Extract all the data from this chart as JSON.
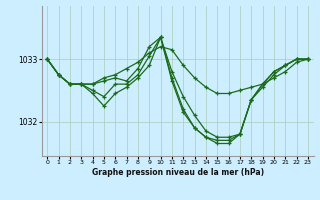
{
  "title": "Graphe pression niveau de la mer (hPa)",
  "bg_color": "#cceeff",
  "grid_color": "#aaccbb",
  "line_color": "#1a6b1a",
  "xlim": [
    -0.5,
    23.5
  ],
  "ylim": [
    1031.45,
    1033.85
  ],
  "yticks": [
    1032,
    1033
  ],
  "xticks": [
    0,
    1,
    2,
    3,
    4,
    5,
    6,
    7,
    8,
    9,
    10,
    11,
    12,
    13,
    14,
    15,
    16,
    17,
    18,
    19,
    20,
    21,
    22,
    23
  ],
  "series": [
    [
      1033.0,
      1032.75,
      1032.6,
      1032.6,
      1032.6,
      1032.7,
      1032.75,
      1032.85,
      1032.95,
      1033.1,
      1033.2,
      1033.15,
      1032.9,
      1032.7,
      1032.55,
      1032.45,
      1032.45,
      1032.5,
      1032.55,
      1032.6,
      1032.7,
      1032.8,
      1032.95,
      1033.0
    ],
    [
      1033.0,
      1032.75,
      1032.6,
      1032.6,
      1032.6,
      1032.65,
      1032.7,
      1032.65,
      1032.85,
      1033.2,
      1033.35,
      1032.8,
      1032.4,
      1032.1,
      1031.85,
      1031.75,
      1031.75,
      1031.8,
      1032.35,
      1032.6,
      1032.8,
      1032.9,
      1033.0,
      1033.0
    ],
    [
      1033.0,
      1032.75,
      1032.6,
      1032.6,
      1032.5,
      1032.4,
      1032.6,
      1032.6,
      1032.75,
      1033.05,
      1033.35,
      1032.7,
      1032.2,
      1031.9,
      1031.75,
      1031.7,
      1031.7,
      1031.8,
      1032.35,
      1032.6,
      1032.8,
      1032.9,
      1033.0,
      1033.0
    ],
    [
      1033.0,
      1032.75,
      1032.6,
      1032.6,
      1032.45,
      1032.25,
      1032.45,
      1032.55,
      1032.7,
      1032.9,
      1033.35,
      1032.65,
      1032.15,
      1031.9,
      1031.75,
      1031.65,
      1031.65,
      1031.8,
      1032.35,
      1032.55,
      1032.75,
      1032.9,
      1033.0,
      1033.0
    ]
  ]
}
